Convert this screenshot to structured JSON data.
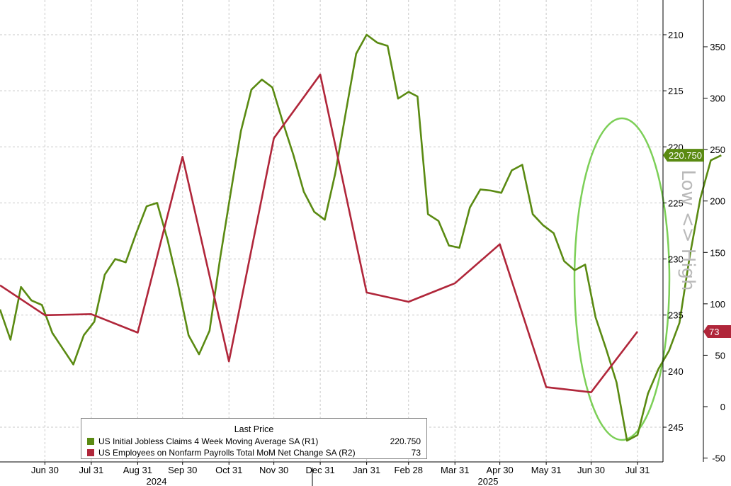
{
  "legend": {
    "header": "Last Price",
    "items": [
      {
        "name": "US Initial Jobless Claims 4 Week Moving Average SA  (R1)",
        "value": "220.750",
        "color": "#5a8a12"
      },
      {
        "name": "US Employees on Nonfarm Payrolls Total MoM Net Change SA  (R2)",
        "value": "73",
        "color": "#b0263a"
      }
    ]
  },
  "annotation": "Low <> High",
  "last_labels": {
    "claims": "220.750",
    "payrolls": "73"
  },
  "colors": {
    "claims": "#5a8a12",
    "payrolls": "#b0263a",
    "ellipse": "#7ccf57",
    "grid": "#c9c9c9"
  },
  "chart_data": {
    "type": "line",
    "x_axis": {
      "ticks": [
        "Jun 30",
        "Jul 31",
        "Aug 31",
        "Sep 30",
        "Oct 31",
        "Nov 30",
        "Dec 31",
        "Jan 31",
        "Feb 28",
        "Mar 31",
        "Apr 30",
        "May 31",
        "Jun 30",
        "Jul 31"
      ],
      "years": [
        "2024",
        "2025"
      ]
    },
    "y_axis_r1": {
      "ticks": [
        210,
        215,
        220,
        225,
        230,
        235,
        240,
        245
      ],
      "range": [
        206,
        249
      ],
      "inverted": true
    },
    "y_axis_r2": {
      "ticks": [
        350,
        300,
        250,
        200,
        150,
        100,
        50,
        0,
        -50
      ],
      "range": [
        -55,
        395
      ],
      "inverted": false
    },
    "series": [
      {
        "name": "US Initial Jobless Claims 4 Week Moving Average SA  (R1)",
        "axis": "R1",
        "points": [
          [
            "2024-05-31",
            234.5
          ],
          [
            "2024-06-07",
            237.2
          ],
          [
            "2024-06-14",
            232.5
          ],
          [
            "2024-06-21",
            233.7
          ],
          [
            "2024-06-28",
            234.1
          ],
          [
            "2024-07-05",
            236.6
          ],
          [
            "2024-07-12",
            238.0
          ],
          [
            "2024-07-19",
            239.4
          ],
          [
            "2024-07-26",
            236.8
          ],
          [
            "2024-08-02",
            235.6
          ],
          [
            "2024-08-09",
            231.4
          ],
          [
            "2024-08-16",
            230.0
          ],
          [
            "2024-08-23",
            230.3
          ],
          [
            "2024-08-30",
            227.7
          ],
          [
            "2024-09-06",
            225.3
          ],
          [
            "2024-09-13",
            225.0
          ],
          [
            "2024-09-20",
            228.3
          ],
          [
            "2024-09-27",
            232.3
          ],
          [
            "2024-10-04",
            236.8
          ],
          [
            "2024-10-11",
            238.5
          ],
          [
            "2024-10-18",
            236.4
          ],
          [
            "2024-10-25",
            230.0
          ],
          [
            "2024-11-01",
            224.2
          ],
          [
            "2024-11-08",
            218.6
          ],
          [
            "2024-11-15",
            214.9
          ],
          [
            "2024-11-22",
            214.0
          ],
          [
            "2024-11-29",
            214.7
          ],
          [
            "2024-12-06",
            217.8
          ],
          [
            "2024-12-13",
            220.7
          ],
          [
            "2024-12-20",
            224.0
          ],
          [
            "2024-12-27",
            225.8
          ],
          [
            "2025-01-03",
            226.5
          ],
          [
            "2025-01-10",
            222.4
          ],
          [
            "2025-01-17",
            217.0
          ],
          [
            "2025-01-24",
            211.7
          ],
          [
            "2025-01-31",
            210.0
          ],
          [
            "2025-02-07",
            210.7
          ],
          [
            "2025-02-14",
            211.0
          ],
          [
            "2025-02-21",
            215.7
          ],
          [
            "2025-02-28",
            215.1
          ],
          [
            "2025-03-06",
            215.5
          ],
          [
            "2025-03-13",
            226.0
          ],
          [
            "2025-03-20",
            226.6
          ],
          [
            "2025-03-27",
            228.8
          ],
          [
            "2025-04-03",
            229.0
          ],
          [
            "2025-04-10",
            225.4
          ],
          [
            "2025-04-17",
            223.8
          ],
          [
            "2025-04-24",
            223.9
          ],
          [
            "2025-05-01",
            224.1
          ],
          [
            "2025-05-08",
            222.1
          ],
          [
            "2025-05-15",
            221.6
          ],
          [
            "2025-05-22",
            226.0
          ],
          [
            "2025-05-29",
            227.0
          ],
          [
            "2025-06-05",
            227.7
          ],
          [
            "2025-06-12",
            230.2
          ],
          [
            "2025-06-19",
            231.0
          ],
          [
            "2025-06-26",
            230.5
          ],
          [
            "2025-07-03",
            235.2
          ],
          [
            "2025-07-10",
            238.0
          ],
          [
            "2025-07-17",
            241.0
          ],
          [
            "2025-07-24",
            246.2
          ],
          [
            "2025-07-31",
            245.7
          ],
          [
            "2025-08-07",
            242.0
          ],
          [
            "2025-08-14",
            239.8
          ],
          [
            "2025-08-21",
            238.2
          ],
          [
            "2025-08-28",
            235.7
          ],
          [
            "2025-09-04",
            229.7
          ],
          [
            "2025-09-11",
            224.6
          ],
          [
            "2025-09-18",
            221.2
          ],
          [
            "2025-09-25",
            220.75
          ]
        ]
      },
      {
        "name": "US Employees on Nonfarm Payrolls Total MoM Net Change SA  (R2)",
        "axis": "R2",
        "points": [
          [
            "2024-05-31",
            118
          ],
          [
            "2024-06-30",
            89
          ],
          [
            "2024-07-31",
            90
          ],
          [
            "2024-08-31",
            72
          ],
          [
            "2024-09-30",
            243
          ],
          [
            "2024-10-31",
            44
          ],
          [
            "2024-11-30",
            261
          ],
          [
            "2024-12-31",
            323
          ],
          [
            "2025-01-31",
            111
          ],
          [
            "2025-02-28",
            102
          ],
          [
            "2025-03-31",
            120
          ],
          [
            "2025-04-30",
            158
          ],
          [
            "2025-05-31",
            19
          ],
          [
            "2025-06-30",
            14
          ],
          [
            "2025-07-31",
            73
          ]
        ]
      }
    ]
  }
}
